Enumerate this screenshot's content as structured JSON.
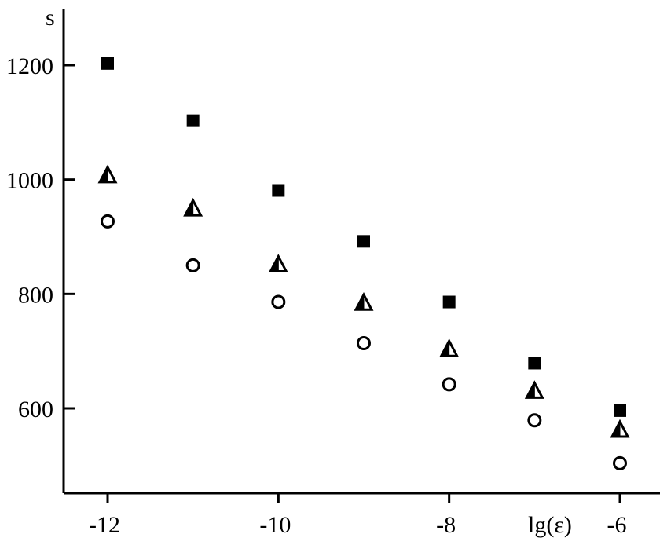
{
  "chart_data": {
    "type": "scatter",
    "title": "",
    "xlabel": "lg(ε)",
    "ylabel": "s",
    "x": [
      -12,
      -11,
      -10,
      -9,
      -8,
      -7,
      -6
    ],
    "xlim": [
      -12.5,
      -5.5
    ],
    "ylim": [
      460,
      1300
    ],
    "x_ticks": [
      -12,
      -10,
      -8,
      -6
    ],
    "x_tick_labels": [
      "-12",
      "-10",
      "-8",
      "-6"
    ],
    "y_ticks": [
      600,
      800,
      1000,
      1200
    ],
    "y_tick_labels": [
      "600",
      "800",
      "1000",
      "1200"
    ],
    "grid": false,
    "legend": "none",
    "series": [
      {
        "marker": "filled-square",
        "values": [
          1203,
          1103,
          981,
          892,
          786,
          679,
          596
        ]
      },
      {
        "marker": "half-filled-triangle",
        "values": [
          1008,
          950,
          852,
          785,
          704,
          631,
          563
        ]
      },
      {
        "marker": "open-circle",
        "values": [
          927,
          850,
          786,
          714,
          642,
          579,
          504
        ]
      }
    ]
  }
}
